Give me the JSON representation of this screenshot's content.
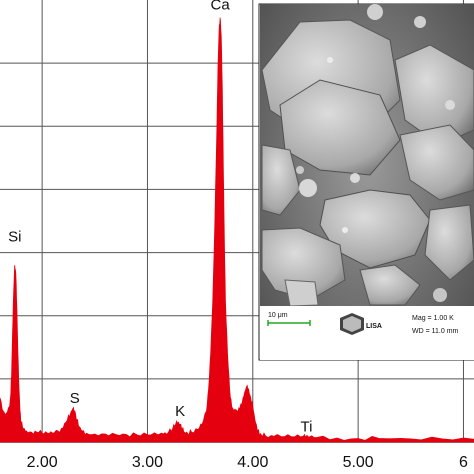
{
  "chart_data": {
    "type": "area",
    "xlim": [
      1.6,
      6.1
    ],
    "ylim": [
      0,
      1
    ],
    "x_ticks": [
      "2.00",
      "3.00",
      "4.00",
      "5.00",
      "6"
    ],
    "x_tick_values": [
      2.0,
      3.0,
      4.0,
      5.0,
      6.0
    ],
    "grid": true,
    "fill_color": "#e5000f",
    "peak_labels": [
      {
        "label": "Si",
        "x": 1.74,
        "y": 0.44
      },
      {
        "label": "S",
        "x": 2.31,
        "y": 0.075
      },
      {
        "label": "K",
        "x": 3.31,
        "y": 0.045
      },
      {
        "label": "Ca",
        "x": 3.69,
        "y": 0.965
      },
      {
        "label": "Ti",
        "x": 4.51,
        "y": 0.01
      }
    ],
    "spectrum": {
      "x": [
        1.6,
        1.63,
        1.66,
        1.69,
        1.7,
        1.71,
        1.72,
        1.73,
        1.74,
        1.75,
        1.76,
        1.77,
        1.78,
        1.79,
        1.8,
        1.82,
        1.85,
        1.9,
        1.95,
        2.0,
        2.05,
        2.1,
        2.15,
        2.2,
        2.24,
        2.27,
        2.29,
        2.31,
        2.33,
        2.35,
        2.38,
        2.42,
        2.5,
        2.6,
        2.7,
        2.8,
        2.9,
        3.0,
        3.1,
        3.15,
        3.2,
        3.24,
        3.27,
        3.29,
        3.31,
        3.33,
        3.35,
        3.38,
        3.42,
        3.48,
        3.52,
        3.56,
        3.58,
        3.6,
        3.62,
        3.64,
        3.66,
        3.67,
        3.68,
        3.69,
        3.7,
        3.71,
        3.72,
        3.73,
        3.74,
        3.76,
        3.78,
        3.8,
        3.82,
        3.84,
        3.86,
        3.88,
        3.9,
        3.92,
        3.94,
        3.96,
        3.98,
        4.0,
        4.02,
        4.04,
        4.06,
        4.08,
        4.12,
        4.2,
        4.3,
        4.4,
        4.48,
        4.51,
        4.54,
        4.6,
        4.8,
        5.0,
        5.2,
        5.5,
        5.8,
        6.1
      ],
      "y": [
        0.1,
        0.07,
        0.065,
        0.08,
        0.1,
        0.15,
        0.25,
        0.34,
        0.4,
        0.38,
        0.3,
        0.2,
        0.12,
        0.07,
        0.045,
        0.03,
        0.025,
        0.022,
        0.022,
        0.02,
        0.02,
        0.02,
        0.025,
        0.032,
        0.05,
        0.065,
        0.075,
        0.07,
        0.05,
        0.035,
        0.025,
        0.02,
        0.018,
        0.018,
        0.017,
        0.017,
        0.016,
        0.016,
        0.016,
        0.018,
        0.022,
        0.03,
        0.042,
        0.045,
        0.04,
        0.03,
        0.022,
        0.02,
        0.022,
        0.028,
        0.04,
        0.07,
        0.12,
        0.2,
        0.32,
        0.5,
        0.72,
        0.85,
        0.93,
        0.96,
        0.92,
        0.8,
        0.62,
        0.45,
        0.32,
        0.2,
        0.12,
        0.08,
        0.07,
        0.07,
        0.07,
        0.08,
        0.09,
        0.11,
        0.125,
        0.12,
        0.1,
        0.08,
        0.05,
        0.03,
        0.02,
        0.016,
        0.014,
        0.013,
        0.012,
        0.012,
        0.013,
        0.014,
        0.012,
        0.01,
        0.009,
        0.008,
        0.008,
        0.007,
        0.007,
        0.006
      ]
    }
  },
  "sem_inset": {
    "scale_label": "10 μm",
    "logo_text": "LISA",
    "mag_text": "Mag =  1.00 K",
    "wd_text": "WD = 11.0 mm"
  }
}
